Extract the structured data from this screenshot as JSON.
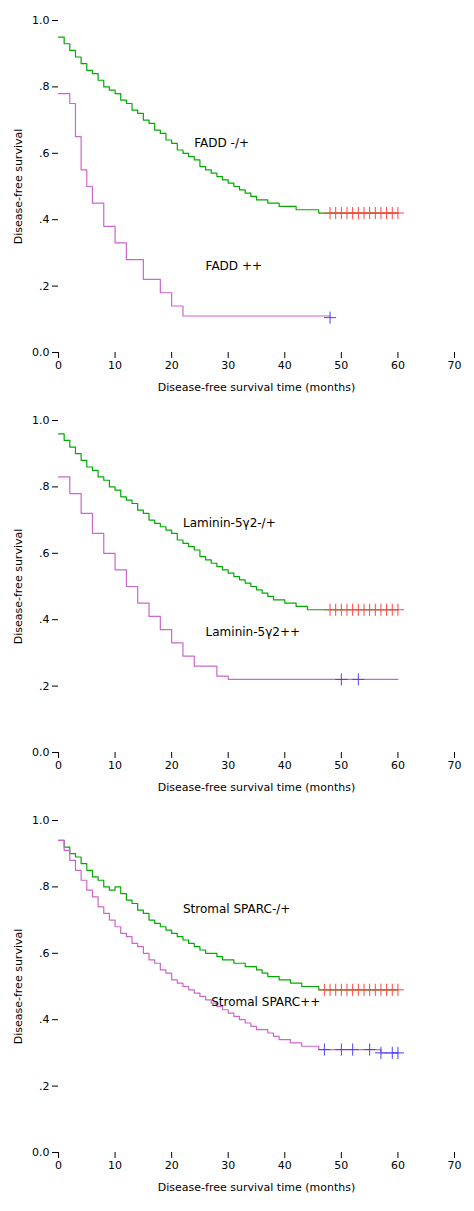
{
  "chart_data": [
    {
      "type": "step",
      "xlabel": "Disease-free survival time (months)",
      "ylabel": "Disease-free survival",
      "xlim": [
        0,
        70
      ],
      "ylim": [
        0.0,
        1.0
      ],
      "xticks": [
        0,
        10,
        20,
        30,
        40,
        50,
        60,
        70
      ],
      "yticks": [
        {
          "value": 0.0,
          "label": "0.0"
        },
        {
          "value": 0.2,
          "label": ".2"
        },
        {
          "value": 0.4,
          "label": ".4"
        },
        {
          "value": 0.6,
          "label": ".6"
        },
        {
          "value": 0.8,
          "label": ".8"
        },
        {
          "value": 1.0,
          "label": "1.0"
        }
      ],
      "series": [
        {
          "type": "step",
          "color": "#00aa00",
          "x": [
            0,
            1,
            2,
            3,
            4,
            5,
            6,
            7,
            8,
            9,
            10,
            11,
            12,
            13,
            14,
            15,
            16,
            17,
            18,
            19,
            20,
            21,
            22,
            23,
            24,
            25,
            26,
            27,
            28,
            29,
            30,
            31,
            32,
            33,
            34,
            35,
            36,
            37,
            38,
            39,
            40,
            41,
            42,
            43,
            44,
            45,
            46,
            47,
            48,
            60
          ],
          "values": [
            0.95,
            0.93,
            0.91,
            0.89,
            0.87,
            0.85,
            0.84,
            0.82,
            0.8,
            0.79,
            0.78,
            0.76,
            0.75,
            0.73,
            0.72,
            0.7,
            0.69,
            0.67,
            0.66,
            0.64,
            0.63,
            0.61,
            0.6,
            0.59,
            0.58,
            0.56,
            0.55,
            0.54,
            0.53,
            0.52,
            0.51,
            0.5,
            0.49,
            0.48,
            0.47,
            0.46,
            0.46,
            0.45,
            0.45,
            0.44,
            0.44,
            0.44,
            0.43,
            0.43,
            0.43,
            0.43,
            0.42,
            0.42,
            0.42,
            0.42
          ]
        },
        {
          "type": "step",
          "color": "#cc66cc",
          "x": [
            0,
            1,
            2,
            3,
            4,
            5,
            6,
            8,
            10,
            12,
            15,
            18,
            20,
            22,
            25,
            48
          ],
          "values": [
            0.78,
            0.78,
            0.75,
            0.65,
            0.55,
            0.5,
            0.45,
            0.38,
            0.33,
            0.28,
            0.22,
            0.18,
            0.14,
            0.11,
            0.11,
            0.11
          ]
        },
        {
          "type": "scatter",
          "marker": "plus",
          "color": "#ff4444",
          "x": [
            48,
            49,
            50,
            51,
            52,
            53,
            54,
            55,
            56,
            57,
            58,
            59,
            60
          ],
          "values": [
            0.42,
            0.42,
            0.42,
            0.42,
            0.42,
            0.42,
            0.42,
            0.42,
            0.42,
            0.42,
            0.42,
            0.42,
            0.42
          ]
        },
        {
          "type": "scatter",
          "marker": "plus",
          "color": "#4444ff",
          "x": [
            48
          ],
          "values": [
            0.105
          ]
        }
      ],
      "annotations": [
        {
          "text": "FADD -/+",
          "x": 24,
          "y": 0.62
        },
        {
          "text": "FADD ++",
          "x": 26,
          "y": 0.25
        }
      ]
    },
    {
      "type": "step",
      "xlabel": "Disease-free survival time (months)",
      "ylabel": "Disease-free survival",
      "xlim": [
        0,
        70
      ],
      "ylim": [
        0.0,
        1.0
      ],
      "xticks": [
        0,
        10,
        20,
        30,
        40,
        50,
        60,
        70
      ],
      "yticks": [
        {
          "value": 0.0,
          "label": "0.0"
        },
        {
          "value": 0.2,
          "label": ".2"
        },
        {
          "value": 0.4,
          "label": ".4"
        },
        {
          "value": 0.6,
          "label": ".6"
        },
        {
          "value": 0.8,
          "label": ".8"
        },
        {
          "value": 1.0,
          "label": "1.0"
        }
      ],
      "series": [
        {
          "type": "step",
          "color": "#00aa00",
          "x": [
            0,
            1,
            2,
            3,
            4,
            5,
            6,
            7,
            8,
            9,
            10,
            11,
            12,
            13,
            14,
            15,
            16,
            17,
            18,
            19,
            20,
            21,
            22,
            23,
            24,
            25,
            26,
            27,
            28,
            29,
            30,
            31,
            32,
            33,
            34,
            35,
            36,
            37,
            38,
            39,
            40,
            41,
            42,
            43,
            44,
            45,
            46,
            47,
            48,
            60
          ],
          "values": [
            0.96,
            0.94,
            0.92,
            0.9,
            0.88,
            0.86,
            0.85,
            0.83,
            0.82,
            0.8,
            0.79,
            0.77,
            0.76,
            0.75,
            0.73,
            0.72,
            0.7,
            0.69,
            0.68,
            0.67,
            0.66,
            0.64,
            0.63,
            0.62,
            0.61,
            0.59,
            0.58,
            0.57,
            0.56,
            0.55,
            0.54,
            0.53,
            0.52,
            0.51,
            0.5,
            0.49,
            0.48,
            0.47,
            0.46,
            0.46,
            0.45,
            0.45,
            0.44,
            0.44,
            0.43,
            0.43,
            0.43,
            0.43,
            0.43,
            0.43
          ]
        },
        {
          "type": "step",
          "color": "#cc66cc",
          "x": [
            0,
            2,
            4,
            6,
            8,
            10,
            12,
            14,
            16,
            18,
            20,
            22,
            24,
            26,
            28,
            30,
            32,
            35,
            50,
            53,
            60
          ],
          "values": [
            0.83,
            0.78,
            0.72,
            0.66,
            0.6,
            0.55,
            0.5,
            0.45,
            0.41,
            0.37,
            0.33,
            0.29,
            0.26,
            0.26,
            0.23,
            0.22,
            0.22,
            0.22,
            0.22,
            0.22,
            0.22
          ]
        },
        {
          "type": "scatter",
          "marker": "plus",
          "color": "#ff4444",
          "x": [
            48,
            49,
            50,
            51,
            52,
            53,
            54,
            55,
            56,
            57,
            58,
            59,
            60
          ],
          "values": [
            0.43,
            0.43,
            0.43,
            0.43,
            0.43,
            0.43,
            0.43,
            0.43,
            0.43,
            0.43,
            0.43,
            0.43,
            0.43
          ]
        },
        {
          "type": "scatter",
          "marker": "plus",
          "color": "#4444ff",
          "x": [
            50,
            53
          ],
          "values": [
            0.22,
            0.22
          ]
        }
      ],
      "annotations": [
        {
          "text": "Laminin-5γ2-/+",
          "x": 22,
          "y": 0.68
        },
        {
          "text": "Laminin-5γ2++",
          "x": 26,
          "y": 0.35
        }
      ]
    },
    {
      "type": "step",
      "xlabel": "Disease-free survival time (months)",
      "ylabel": "Disease-free survival",
      "xlim": [
        0,
        70
      ],
      "ylim": [
        0.0,
        1.0
      ],
      "xticks": [
        0,
        10,
        20,
        30,
        40,
        50,
        60,
        70
      ],
      "yticks": [
        {
          "value": 0.0,
          "label": "0.0"
        },
        {
          "value": 0.2,
          "label": ".2"
        },
        {
          "value": 0.4,
          "label": ".4"
        },
        {
          "value": 0.6,
          "label": ".6"
        },
        {
          "value": 0.8,
          "label": ".8"
        },
        {
          "value": 1.0,
          "label": "1.0"
        }
      ],
      "series": [
        {
          "type": "step",
          "color": "#00aa00",
          "x": [
            0,
            1,
            2,
            3,
            4,
            5,
            6,
            7,
            8,
            9,
            10,
            11,
            12,
            13,
            14,
            15,
            16,
            17,
            18,
            19,
            20,
            21,
            22,
            23,
            24,
            25,
            26,
            27,
            28,
            29,
            30,
            31,
            32,
            33,
            34,
            35,
            36,
            37,
            38,
            39,
            40,
            41,
            42,
            43,
            44,
            45,
            46,
            47,
            60
          ],
          "values": [
            0.94,
            0.92,
            0.9,
            0.89,
            0.87,
            0.85,
            0.83,
            0.82,
            0.8,
            0.79,
            0.8,
            0.78,
            0.76,
            0.75,
            0.73,
            0.72,
            0.7,
            0.69,
            0.68,
            0.67,
            0.66,
            0.65,
            0.64,
            0.63,
            0.62,
            0.61,
            0.6,
            0.6,
            0.59,
            0.58,
            0.58,
            0.57,
            0.57,
            0.56,
            0.56,
            0.55,
            0.54,
            0.53,
            0.53,
            0.52,
            0.52,
            0.51,
            0.51,
            0.5,
            0.5,
            0.5,
            0.49,
            0.49,
            0.49
          ]
        },
        {
          "type": "step",
          "color": "#cc66cc",
          "x": [
            0,
            1,
            2,
            3,
            4,
            5,
            6,
            7,
            8,
            9,
            10,
            11,
            12,
            13,
            14,
            15,
            16,
            17,
            18,
            19,
            20,
            21,
            22,
            23,
            24,
            25,
            26,
            27,
            28,
            29,
            30,
            31,
            32,
            33,
            34,
            35,
            36,
            37,
            38,
            39,
            40,
            41,
            42,
            43,
            44,
            45,
            46,
            47,
            50,
            55,
            57,
            60
          ],
          "values": [
            0.94,
            0.91,
            0.88,
            0.85,
            0.82,
            0.79,
            0.77,
            0.74,
            0.72,
            0.7,
            0.68,
            0.66,
            0.65,
            0.63,
            0.62,
            0.6,
            0.58,
            0.57,
            0.55,
            0.54,
            0.52,
            0.51,
            0.5,
            0.49,
            0.48,
            0.47,
            0.46,
            0.45,
            0.44,
            0.43,
            0.42,
            0.41,
            0.4,
            0.39,
            0.38,
            0.37,
            0.37,
            0.36,
            0.35,
            0.34,
            0.34,
            0.33,
            0.33,
            0.32,
            0.32,
            0.32,
            0.31,
            0.31,
            0.31,
            0.31,
            0.3,
            0.3
          ]
        },
        {
          "type": "scatter",
          "marker": "plus",
          "color": "#ff4444",
          "x": [
            47,
            48,
            49,
            50,
            51,
            52,
            53,
            54,
            55,
            56,
            57,
            58,
            59,
            60
          ],
          "values": [
            0.49,
            0.49,
            0.49,
            0.49,
            0.49,
            0.49,
            0.49,
            0.49,
            0.49,
            0.49,
            0.49,
            0.49,
            0.49,
            0.49
          ]
        },
        {
          "type": "scatter",
          "marker": "plus",
          "color": "#4444ff",
          "x": [
            47,
            50,
            52,
            55,
            57,
            59,
            60
          ],
          "values": [
            0.31,
            0.31,
            0.31,
            0.31,
            0.3,
            0.3,
            0.3
          ]
        }
      ],
      "annotations": [
        {
          "text": "Stromal SPARC-/+",
          "x": 22,
          "y": 0.72
        },
        {
          "text": "Stromal SPARC++",
          "x": 27,
          "y": 0.44
        }
      ]
    }
  ]
}
